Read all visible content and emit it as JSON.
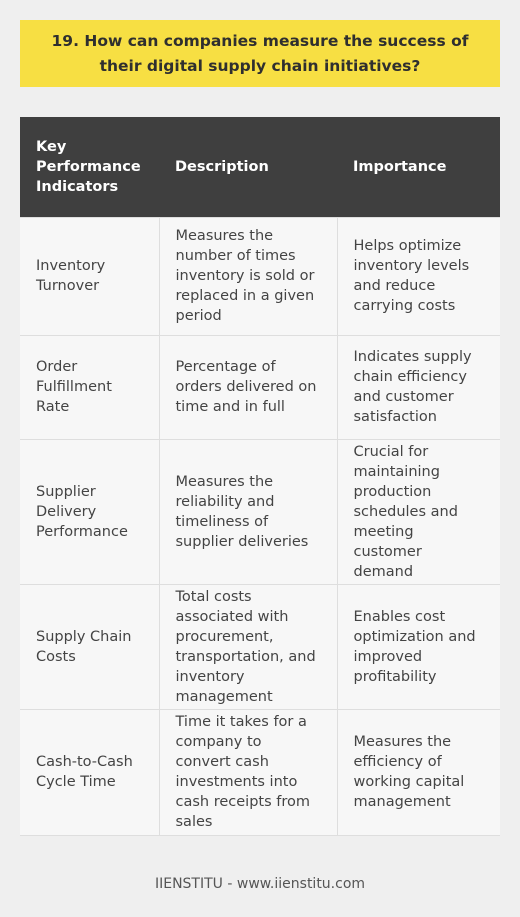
{
  "title": "19. How can companies measure the success of their digital supply chain initiatives?",
  "table": {
    "headers": [
      "Key Performance Indicators",
      "Description",
      "Importance"
    ],
    "rows": [
      [
        "Inventory Turnover",
        "Measures the number of times inventory is sold or replaced in a given period",
        "Helps optimize inventory levels and reduce carrying costs"
      ],
      [
        "Order Fulfillment Rate",
        "Percentage of orders delivered on time and in full",
        "Indicates supply chain efficiency and customer satisfaction"
      ],
      [
        "Supplier Delivery Performance",
        "Measures the reliability and timeliness of supplier deliveries",
        "Crucial for maintaining production schedules and meeting customer demand"
      ],
      [
        "Supply Chain Costs",
        "Total costs associated with procurement, transportation, and inventory management",
        "Enables cost optimization and improved profitability"
      ],
      [
        "Cash-to-Cash Cycle Time",
        "Time it takes for a company to convert cash investments into cash receipts from sales",
        "Measures the efficiency of working capital management"
      ]
    ]
  },
  "footer": "IIENSTITU - www.iienstitu.com",
  "colors": {
    "title_background": "#f7df43",
    "header_background": "#3f3f3f",
    "page_background": "#efefef"
  }
}
